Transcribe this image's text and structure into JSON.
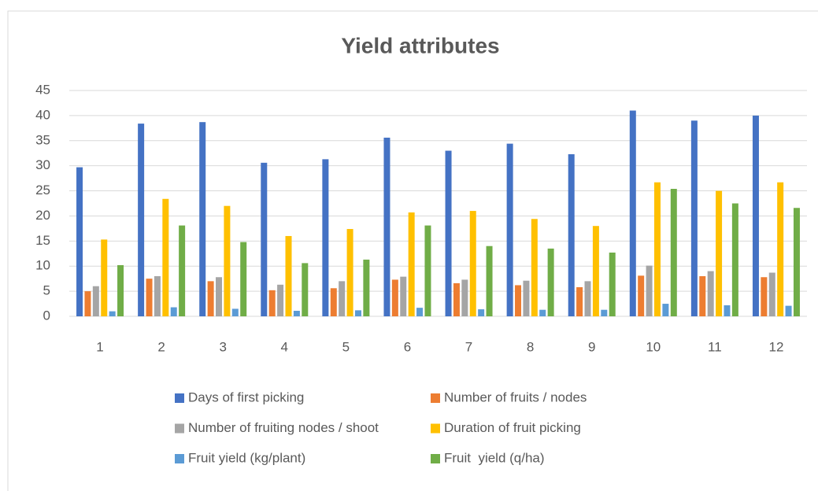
{
  "chart_data": {
    "type": "bar",
    "title": "Yield attributes",
    "categories": [
      "1",
      "2",
      "3",
      "4",
      "5",
      "6",
      "7",
      "8",
      "9",
      "10",
      "11",
      "12"
    ],
    "series": [
      {
        "name": "Days of first picking",
        "color": "#4472c4",
        "values": [
          29.7,
          38.4,
          38.7,
          30.6,
          31.3,
          35.6,
          33,
          34.4,
          32.3,
          41,
          39,
          40
        ]
      },
      {
        "name": "Number of fruits / nodes",
        "color": "#ed7d31",
        "values": [
          5,
          7.5,
          7,
          5.2,
          5.6,
          7.3,
          6.6,
          6.2,
          5.8,
          8.1,
          8,
          7.8
        ]
      },
      {
        "name": "Number of fruiting nodes / shoot",
        "color": "#a5a5a5",
        "values": [
          6,
          8,
          7.8,
          6.3,
          7,
          7.9,
          7.3,
          7.1,
          7,
          10.1,
          9,
          8.7
        ]
      },
      {
        "name": "Duration of fruit picking",
        "color": "#ffc000",
        "values": [
          15.3,
          23.4,
          22,
          16,
          17.4,
          20.7,
          21,
          19.4,
          18,
          26.7,
          25,
          26.7
        ]
      },
      {
        "name": "Fruit yield (kg/plant)",
        "color": "#5b9bd5",
        "values": [
          1,
          1.8,
          1.5,
          1.1,
          1.2,
          1.7,
          1.4,
          1.3,
          1.3,
          2.5,
          2.2,
          2.1
        ]
      },
      {
        "name": "Fruit  yield (q/ha)",
        "color": "#70ad47",
        "values": [
          10.2,
          18.1,
          14.8,
          10.6,
          11.3,
          18.1,
          14,
          13.5,
          12.7,
          25.4,
          22.5,
          21.6
        ]
      }
    ],
    "ylim": [
      0,
      45
    ],
    "yticks": [
      0,
      5,
      10,
      15,
      20,
      25,
      30,
      35,
      40,
      45
    ],
    "grid": true,
    "legend": "bottom"
  }
}
